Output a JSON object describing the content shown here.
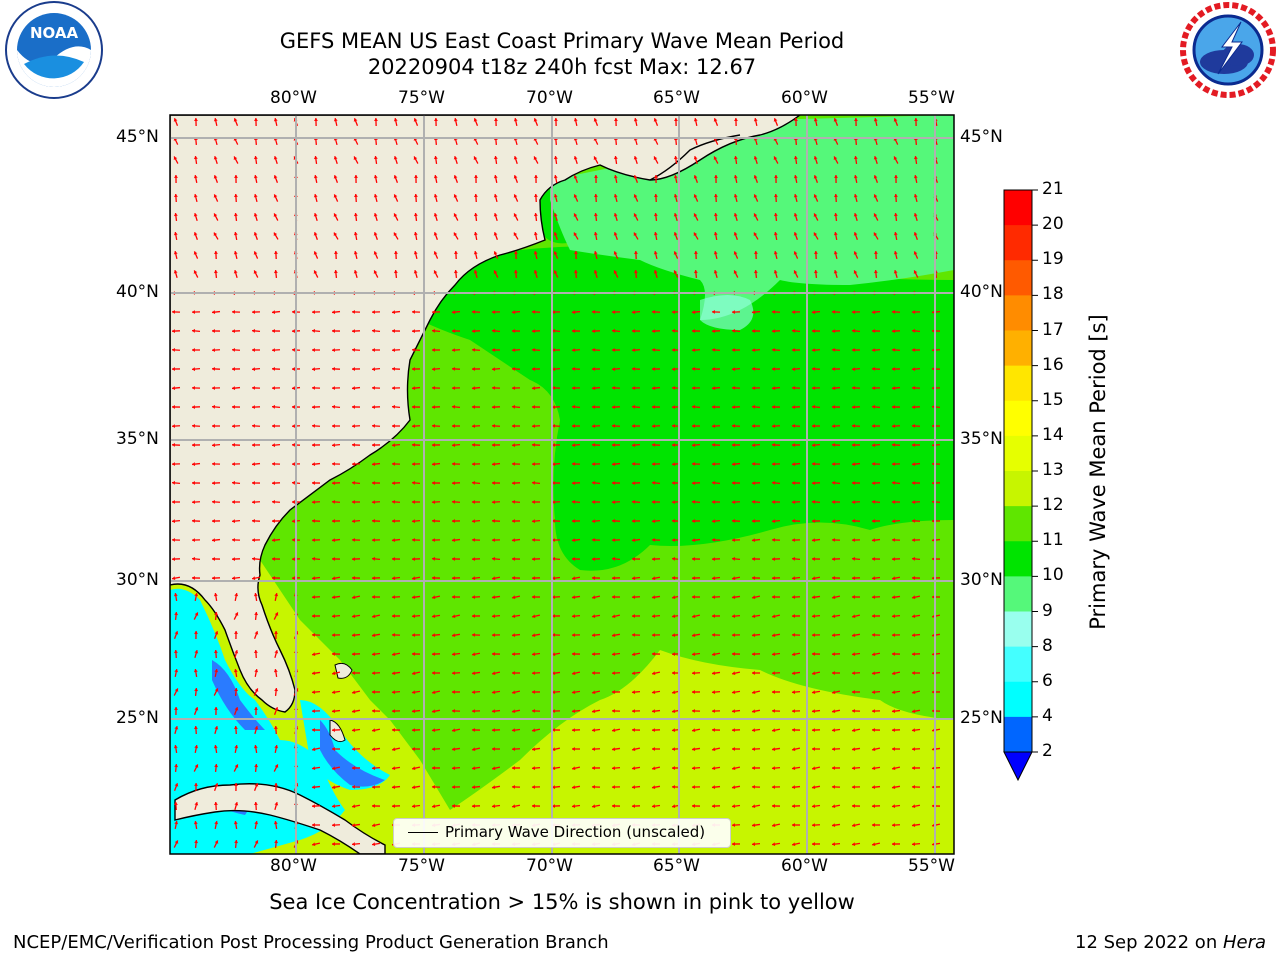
{
  "header": {
    "title_line1": "GEFS MEAN US East Coast Primary Wave Mean Period",
    "title_line2": "20220904 t18z 240h fcst   Max: 12.67"
  },
  "logos": {
    "left": "NOAA",
    "left_ring_text": "NATIONAL OCEANIC AND ATMOSPHERIC ADMINISTRATION · U.S. DEPARTMENT OF COMMERCE",
    "right_ring_text": "NATIONAL WEATHER SERVICE"
  },
  "map": {
    "lon_labels": [
      "80°W",
      "75°W",
      "70°W",
      "65°W",
      "60°W",
      "55°W"
    ],
    "lat_labels": [
      "45°N",
      "40°N",
      "35°N",
      "30°N",
      "25°N"
    ],
    "legend_label": "Primary Wave Direction (unscaled)",
    "colors": {
      "land": "#efecdc",
      "period_9_10": "#55f87a",
      "period_10_11": "#00e400",
      "period_11_12": "#5fe600",
      "period_12_13": "#c7f500",
      "period_6_8": "#00ffff",
      "period_2_4": "#0066ff",
      "arrow": "#ff0000"
    }
  },
  "colorbar": {
    "title": "Primary Wave Mean Period [s]",
    "ticks": [
      "2",
      "4",
      "6",
      "8",
      "9",
      "10",
      "11",
      "12",
      "13",
      "14",
      "15",
      "16",
      "17",
      "18",
      "19",
      "20",
      "21"
    ],
    "colors": [
      "#0000ff",
      "#0066ff",
      "#00ffff",
      "#44ffff",
      "#99ffee",
      "#55f87a",
      "#00e400",
      "#5fe600",
      "#c7f500",
      "#e6ff00",
      "#ffff00",
      "#ffe600",
      "#ffb000",
      "#ff8c00",
      "#ff5a00",
      "#ff2a00",
      "#ff0000"
    ]
  },
  "footer": {
    "subtitle": "Sea Ice Concentration > 15% is shown in pink to yellow",
    "left": "NCEP/EMC/Verification Post Processing Product Generation Branch",
    "right_date": "12 Sep 2022 on ",
    "right_machine": "Hera"
  }
}
